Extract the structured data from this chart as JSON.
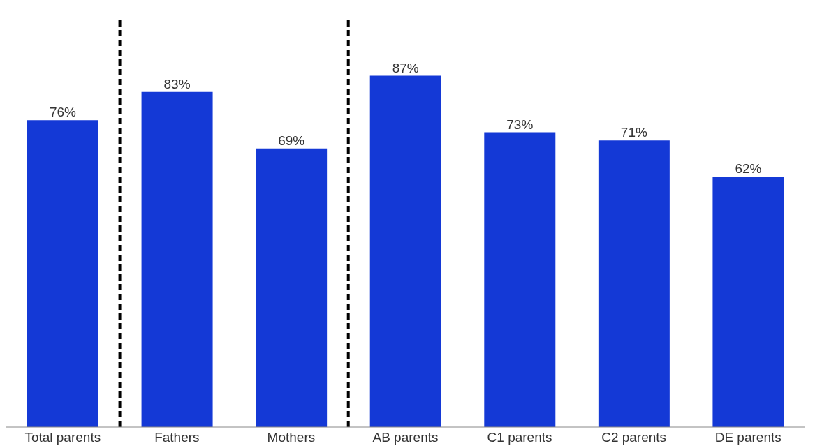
{
  "chart_data": {
    "type": "bar",
    "categories": [
      "Total parents",
      "Fathers",
      "Mothers",
      "AB parents",
      "C1 parents",
      "C2 parents",
      "DE parents"
    ],
    "values": [
      76,
      83,
      69,
      87,
      73,
      71,
      62
    ],
    "value_labels": [
      "76%",
      "83%",
      "69%",
      "87%",
      "73%",
      "71%",
      "62%"
    ],
    "color": "#1439d6",
    "grid": false,
    "legend": false
  }
}
